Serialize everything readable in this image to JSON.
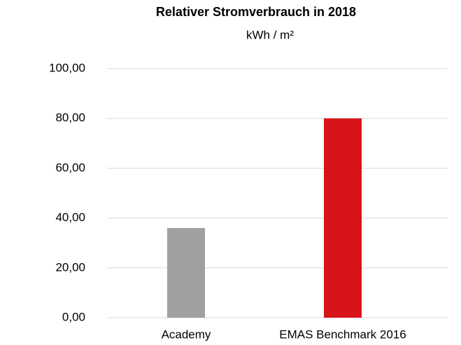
{
  "chart_data": {
    "type": "bar",
    "title": "Relativer Stromverbrauch in 2018",
    "subtitle": "kWh / m²",
    "categories": [
      "Academy",
      "EMAS Benchmark 2016"
    ],
    "values": [
      36,
      80
    ],
    "colors": [
      "#a0a09e",
      "#d7141a"
    ],
    "ylim": [
      0,
      100
    ],
    "yticks": [
      {
        "value": 0,
        "label": "0,00"
      },
      {
        "value": 20,
        "label": "20,00"
      },
      {
        "value": 40,
        "label": "40,00"
      },
      {
        "value": 60,
        "label": "60,00"
      },
      {
        "value": 80,
        "label": "80,00"
      },
      {
        "value": 100,
        "label": "100,00"
      }
    ],
    "grid": true
  }
}
